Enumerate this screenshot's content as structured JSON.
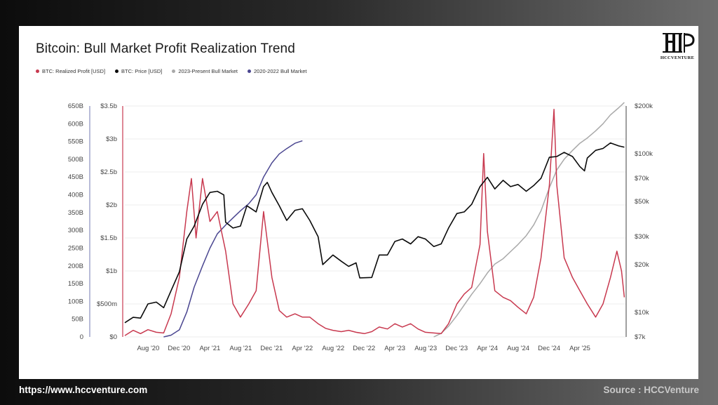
{
  "footer": {
    "url": "https://www.hccventure.com",
    "source": "Source : HCCVenture"
  },
  "logo": {
    "text": "HCCVENTURE",
    "icon": "hcc-logo-icon"
  },
  "colors": {
    "realized_profit": "#c8394f",
    "price": "#0a0a0a",
    "bull_2023": "#a9a9a9",
    "bull_2020": "#4a4690"
  },
  "chart_data": {
    "type": "line",
    "title": "Bitcoin: Bull Market Profit Realization Trend",
    "legend_position": "top-left",
    "grid": true,
    "legend": [
      {
        "label": "BTC: Realized Profit [USD]",
        "color": "#c8394f"
      },
      {
        "label": "BTC: Price [USD]",
        "color": "#0a0a0a"
      },
      {
        "label": "2023-Present Bull Market",
        "color": "#a9a9a9"
      },
      {
        "label": "2020-2022 Bull Market",
        "color": "#4a4690"
      }
    ],
    "x_ticks": [
      "Aug '20",
      "Dec '20",
      "Apr '21",
      "Aug '21",
      "Dec '21",
      "Apr '22",
      "Aug '22",
      "Dec '22",
      "Apr '23",
      "Aug '23",
      "Dec '23",
      "Apr '24",
      "Aug '24",
      "Dec '24",
      "Apr '25"
    ],
    "x_range": [
      2020.33,
      2025.75
    ],
    "axes": {
      "left_outer": {
        "ticks": [
          "0",
          "50B",
          "100B",
          "150B",
          "200B",
          "250B",
          "300B",
          "350B",
          "400B",
          "450B",
          "500B",
          "550B",
          "600B",
          "650B"
        ],
        "range": [
          0,
          650
        ]
      },
      "left_inner": {
        "ticks": [
          "$0",
          "$500m",
          "$1b",
          "$1.5b",
          "$2b",
          "$2.5b",
          "$3b",
          "$3.5b"
        ],
        "range": [
          0,
          3.5
        ]
      },
      "right": {
        "ticks": [
          "$7k",
          "$10k",
          "$20k",
          "$30k",
          "$50k",
          "$70k",
          "$100k",
          "$200k"
        ],
        "scale": "log",
        "range": [
          7000,
          200000
        ]
      }
    },
    "series": [
      {
        "name": "BTC: Price [USD]",
        "axis": "right",
        "points": [
          [
            2020.33,
            8600
          ],
          [
            2020.42,
            9300
          ],
          [
            2020.5,
            9200
          ],
          [
            2020.58,
            11300
          ],
          [
            2020.67,
            11600
          ],
          [
            2020.75,
            10700
          ],
          [
            2020.83,
            13700
          ],
          [
            2020.92,
            18000
          ],
          [
            2021.0,
            29000
          ],
          [
            2021.08,
            35000
          ],
          [
            2021.17,
            48000
          ],
          [
            2021.25,
            57000
          ],
          [
            2021.33,
            58000
          ],
          [
            2021.4,
            55000
          ],
          [
            2021.42,
            37000
          ],
          [
            2021.5,
            34000
          ],
          [
            2021.58,
            35000
          ],
          [
            2021.65,
            47000
          ],
          [
            2021.75,
            43000
          ],
          [
            2021.83,
            62000
          ],
          [
            2021.87,
            66000
          ],
          [
            2021.92,
            57000
          ],
          [
            2022.0,
            47000
          ],
          [
            2022.08,
            38000
          ],
          [
            2022.17,
            44000
          ],
          [
            2022.25,
            45000
          ],
          [
            2022.33,
            38000
          ],
          [
            2022.42,
            30000
          ],
          [
            2022.47,
            20000
          ],
          [
            2022.58,
            23000
          ],
          [
            2022.67,
            21000
          ],
          [
            2022.75,
            19500
          ],
          [
            2022.83,
            20500
          ],
          [
            2022.87,
            16500
          ],
          [
            2023.0,
            16600
          ],
          [
            2023.08,
            23000
          ],
          [
            2023.17,
            23000
          ],
          [
            2023.25,
            28000
          ],
          [
            2023.33,
            29000
          ],
          [
            2023.42,
            27000
          ],
          [
            2023.5,
            30000
          ],
          [
            2023.58,
            29000
          ],
          [
            2023.67,
            26000
          ],
          [
            2023.75,
            27000
          ],
          [
            2023.83,
            34000
          ],
          [
            2023.92,
            42000
          ],
          [
            2024.0,
            43000
          ],
          [
            2024.08,
            48000
          ],
          [
            2024.17,
            62000
          ],
          [
            2024.25,
            71000
          ],
          [
            2024.33,
            60000
          ],
          [
            2024.42,
            68000
          ],
          [
            2024.5,
            62000
          ],
          [
            2024.58,
            64000
          ],
          [
            2024.67,
            58000
          ],
          [
            2024.75,
            63000
          ],
          [
            2024.83,
            70000
          ],
          [
            2024.92,
            95000
          ],
          [
            2025.0,
            96000
          ],
          [
            2025.08,
            102000
          ],
          [
            2025.17,
            96000
          ],
          [
            2025.25,
            83000
          ],
          [
            2025.3,
            78000
          ],
          [
            2025.33,
            94000
          ],
          [
            2025.42,
            105000
          ],
          [
            2025.5,
            108000
          ],
          [
            2025.58,
            117000
          ],
          [
            2025.67,
            112000
          ],
          [
            2025.73,
            110000
          ]
        ]
      },
      {
        "name": "BTC: Realized Profit [USD]",
        "axis": "left_inner",
        "points": [
          [
            2020.33,
            0.02
          ],
          [
            2020.42,
            0.1
          ],
          [
            2020.5,
            0.05
          ],
          [
            2020.58,
            0.11
          ],
          [
            2020.67,
            0.07
          ],
          [
            2020.75,
            0.06
          ],
          [
            2020.83,
            0.35
          ],
          [
            2020.92,
            0.9
          ],
          [
            2021.0,
            1.9
          ],
          [
            2021.05,
            2.4
          ],
          [
            2021.1,
            1.5
          ],
          [
            2021.17,
            2.4
          ],
          [
            2021.25,
            1.75
          ],
          [
            2021.33,
            1.9
          ],
          [
            2021.42,
            1.3
          ],
          [
            2021.5,
            0.5
          ],
          [
            2021.58,
            0.3
          ],
          [
            2021.67,
            0.5
          ],
          [
            2021.75,
            0.7
          ],
          [
            2021.83,
            1.9
          ],
          [
            2021.92,
            0.9
          ],
          [
            2022.0,
            0.4
          ],
          [
            2022.08,
            0.3
          ],
          [
            2022.17,
            0.35
          ],
          [
            2022.25,
            0.3
          ],
          [
            2022.33,
            0.3
          ],
          [
            2022.42,
            0.2
          ],
          [
            2022.5,
            0.13
          ],
          [
            2022.58,
            0.1
          ],
          [
            2022.67,
            0.08
          ],
          [
            2022.75,
            0.1
          ],
          [
            2022.83,
            0.07
          ],
          [
            2022.92,
            0.05
          ],
          [
            2023.0,
            0.08
          ],
          [
            2023.08,
            0.15
          ],
          [
            2023.17,
            0.12
          ],
          [
            2023.25,
            0.2
          ],
          [
            2023.33,
            0.15
          ],
          [
            2023.42,
            0.2
          ],
          [
            2023.5,
            0.12
          ],
          [
            2023.58,
            0.07
          ],
          [
            2023.67,
            0.06
          ],
          [
            2023.75,
            0.05
          ],
          [
            2023.83,
            0.2
          ],
          [
            2023.92,
            0.5
          ],
          [
            2024.0,
            0.65
          ],
          [
            2024.08,
            0.75
          ],
          [
            2024.17,
            1.4
          ],
          [
            2024.21,
            2.78
          ],
          [
            2024.25,
            1.6
          ],
          [
            2024.33,
            0.7
          ],
          [
            2024.42,
            0.6
          ],
          [
            2024.5,
            0.55
          ],
          [
            2024.58,
            0.45
          ],
          [
            2024.67,
            0.35
          ],
          [
            2024.75,
            0.6
          ],
          [
            2024.83,
            1.2
          ],
          [
            2024.92,
            2.3
          ],
          [
            2024.97,
            3.45
          ],
          [
            2025.0,
            2.3
          ],
          [
            2025.08,
            1.2
          ],
          [
            2025.17,
            0.9
          ],
          [
            2025.25,
            0.7
          ],
          [
            2025.33,
            0.5
          ],
          [
            2025.42,
            0.3
          ],
          [
            2025.5,
            0.5
          ],
          [
            2025.58,
            0.9
          ],
          [
            2025.65,
            1.3
          ],
          [
            2025.7,
            1.0
          ],
          [
            2025.73,
            0.6
          ]
        ]
      },
      {
        "name": "2020-2022 Bull Market",
        "axis": "left_outer",
        "points": [
          [
            2020.75,
            0
          ],
          [
            2020.83,
            5
          ],
          [
            2020.92,
            20
          ],
          [
            2021.0,
            70
          ],
          [
            2021.08,
            140
          ],
          [
            2021.17,
            200
          ],
          [
            2021.25,
            250
          ],
          [
            2021.33,
            290
          ],
          [
            2021.42,
            315
          ],
          [
            2021.5,
            335
          ],
          [
            2021.58,
            355
          ],
          [
            2021.67,
            375
          ],
          [
            2021.75,
            400
          ],
          [
            2021.83,
            450
          ],
          [
            2021.92,
            490
          ],
          [
            2022.0,
            515
          ],
          [
            2022.08,
            530
          ],
          [
            2022.17,
            545
          ],
          [
            2022.25,
            552
          ]
        ]
      },
      {
        "name": "2023-Present Bull Market",
        "axis": "left_outer",
        "points": [
          [
            2023.67,
            0
          ],
          [
            2023.75,
            10
          ],
          [
            2023.83,
            30
          ],
          [
            2023.92,
            60
          ],
          [
            2024.0,
            90
          ],
          [
            2024.08,
            120
          ],
          [
            2024.17,
            150
          ],
          [
            2024.25,
            180
          ],
          [
            2024.33,
            205
          ],
          [
            2024.42,
            220
          ],
          [
            2024.5,
            240
          ],
          [
            2024.58,
            260
          ],
          [
            2024.67,
            285
          ],
          [
            2024.75,
            315
          ],
          [
            2024.83,
            355
          ],
          [
            2024.92,
            420
          ],
          [
            2025.0,
            470
          ],
          [
            2025.08,
            500
          ],
          [
            2025.17,
            525
          ],
          [
            2025.25,
            545
          ],
          [
            2025.33,
            560
          ],
          [
            2025.42,
            580
          ],
          [
            2025.5,
            600
          ],
          [
            2025.58,
            625
          ],
          [
            2025.67,
            645
          ],
          [
            2025.73,
            660
          ]
        ]
      }
    ]
  }
}
